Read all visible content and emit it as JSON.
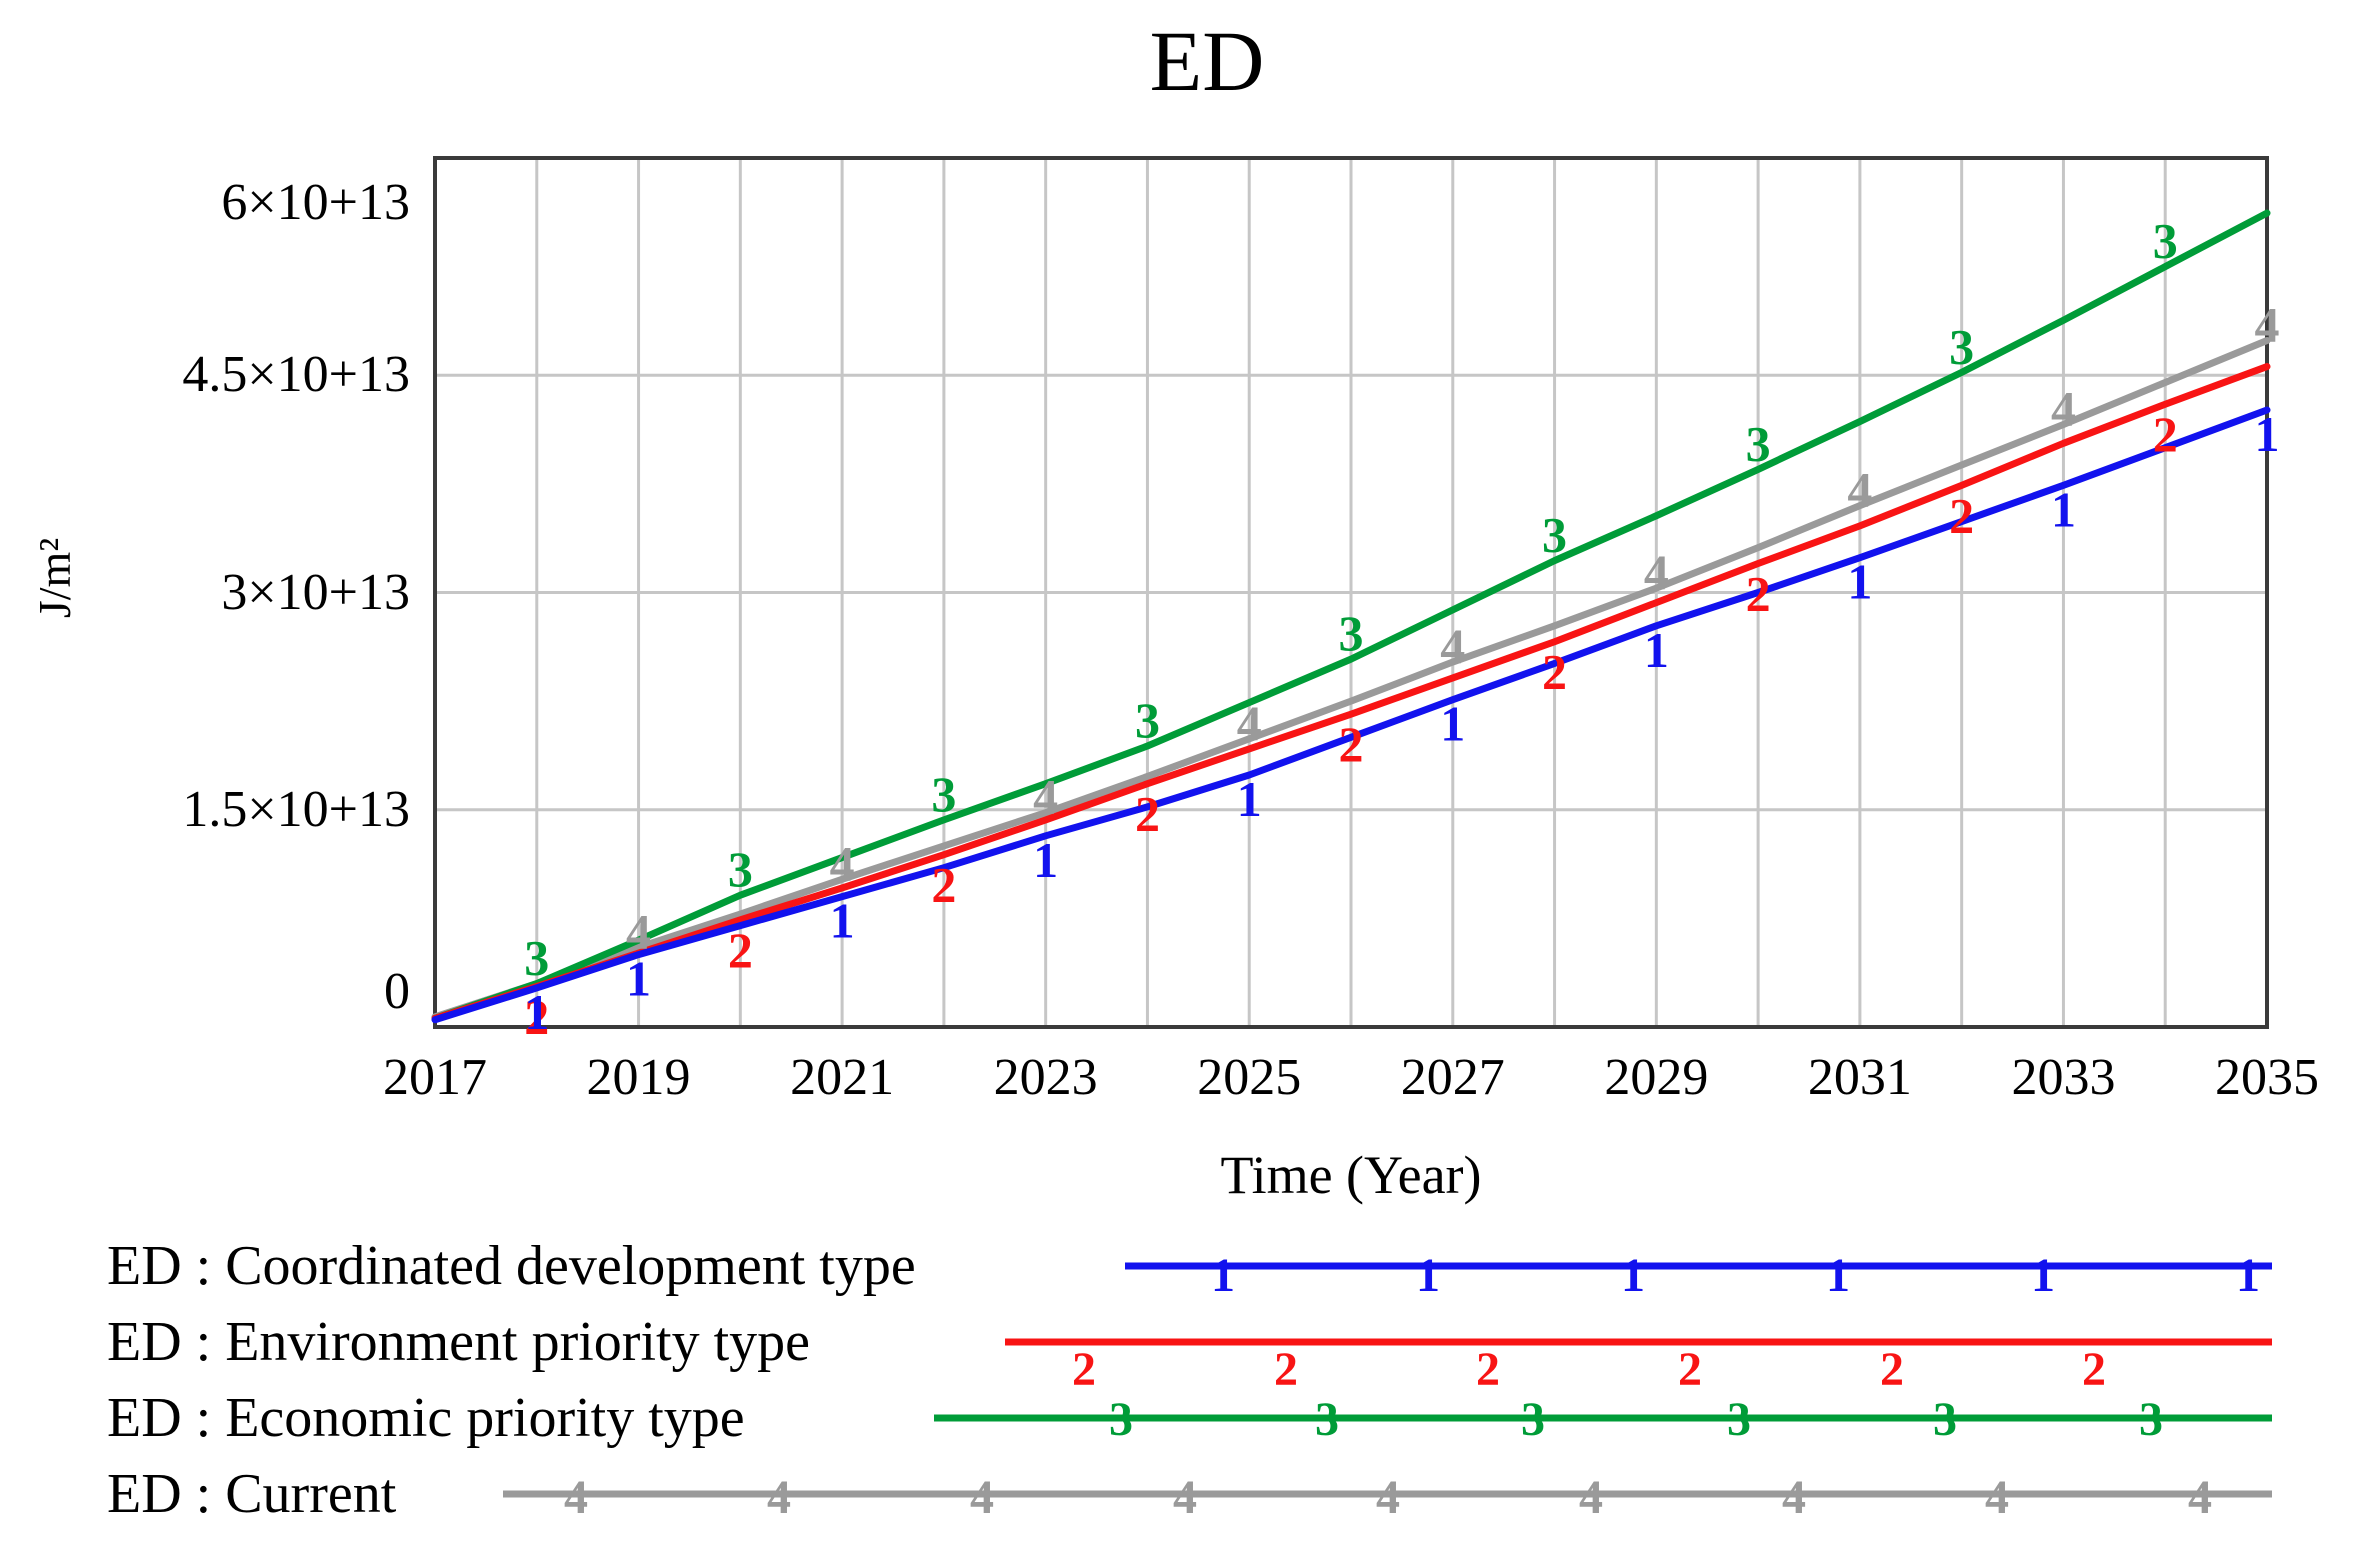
{
  "chart_data": {
    "type": "line",
    "title": "ED",
    "xlabel": "Time (Year)",
    "ylabel": "J/m²",
    "x": [
      2017,
      2018,
      2019,
      2020,
      2021,
      2022,
      2023,
      2024,
      2025,
      2026,
      2027,
      2028,
      2029,
      2030,
      2031,
      2032,
      2033,
      2034,
      2035
    ],
    "x_tick_labels": [
      "2017",
      "2019",
      "2021",
      "2023",
      "2025",
      "2027",
      "2029",
      "2031",
      "2033",
      "2035"
    ],
    "y_ticks": [
      {
        "value_1e13": 0,
        "label": "0"
      },
      {
        "value_1e13": 1.5,
        "label": "1.5×10+13"
      },
      {
        "value_1e13": 3,
        "label": "3×10+13"
      },
      {
        "value_1e13": 4.5,
        "label": "4.5×10+13"
      },
      {
        "value_1e13": 6,
        "label": "6×10+13"
      }
    ],
    "ylim_1e13": [
      0,
      6
    ],
    "y_unit": "J/m²",
    "grid": true,
    "legend_position": "bottom-left",
    "series": [
      {
        "name": "ED : Coordinated development type",
        "marker": "1",
        "color": "#1212ee",
        "marker_years": [
          2018,
          2019,
          2021,
          2023,
          2025,
          2027,
          2029,
          2031,
          2033,
          2035
        ],
        "values_1e13": [
          0.05,
          0.27,
          0.5,
          0.7,
          0.9,
          1.1,
          1.32,
          1.52,
          1.74,
          2.0,
          2.26,
          2.51,
          2.77,
          3.0,
          3.24,
          3.49,
          3.74,
          4.0,
          4.26
        ]
      },
      {
        "name": "ED : Environment priority type",
        "marker": "2",
        "color": "#f81414",
        "marker_years": [
          2018,
          2020,
          2022,
          2024,
          2026,
          2028,
          2030,
          2032,
          2034
        ],
        "values_1e13": [
          0.06,
          0.28,
          0.51,
          0.74,
          0.96,
          1.19,
          1.43,
          1.68,
          1.92,
          2.16,
          2.41,
          2.66,
          2.93,
          3.2,
          3.46,
          3.74,
          4.03,
          4.3,
          4.56
        ]
      },
      {
        "name": "ED : Economic priority type",
        "marker": "3",
        "color": "#009c38",
        "marker_years": [
          2018,
          2020,
          2022,
          2024,
          2026,
          2028,
          2030,
          2032,
          2034
        ],
        "values_1e13": [
          0.06,
          0.3,
          0.6,
          0.91,
          1.17,
          1.43,
          1.68,
          1.94,
          2.24,
          2.54,
          2.88,
          3.22,
          3.53,
          3.85,
          4.18,
          4.52,
          4.88,
          5.25,
          5.62
        ]
      },
      {
        "name": "ED : Current",
        "marker": "4",
        "color": "#9a9a9a",
        "marker_years": [
          2019,
          2021,
          2023,
          2025,
          2027,
          2029,
          2031,
          2033,
          2035
        ],
        "values_1e13": [
          0.07,
          0.3,
          0.55,
          0.78,
          1.02,
          1.25,
          1.48,
          1.73,
          1.99,
          2.25,
          2.52,
          2.77,
          3.03,
          3.31,
          3.6,
          3.88,
          4.16,
          4.45,
          4.74
        ]
      }
    ]
  },
  "colors": {
    "gridline": "#c6c6c6",
    "plot_border": "#3a3a3a",
    "text": "#000000",
    "background": "#ffffff"
  }
}
